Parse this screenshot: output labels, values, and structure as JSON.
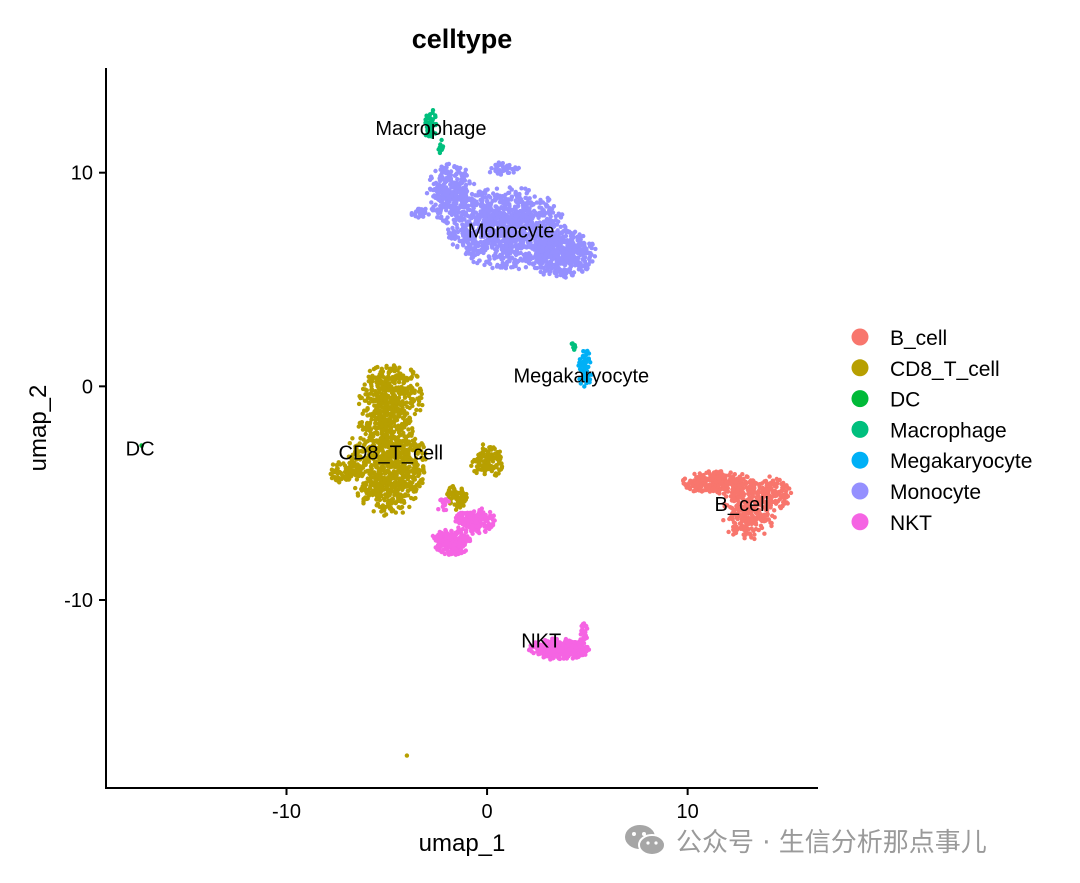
{
  "chart_data": {
    "type": "scatter",
    "title": "celltype",
    "xlabel": "umap_1",
    "ylabel": "umap_2",
    "xlim": [
      -19,
      16.5
    ],
    "ylim": [
      -18.8,
      14.9
    ],
    "xticks": [
      -10,
      0,
      10
    ],
    "yticks": [
      10,
      0,
      -10
    ],
    "xtick_labels": [
      "-10",
      "0",
      "10"
    ],
    "ytick_labels": [
      "10",
      "0",
      "-10"
    ],
    "grid": false,
    "legend_position": "right",
    "series": [
      {
        "name": "B_cell",
        "color": "#F8766D",
        "clusters": [
          {
            "cx": 11.5,
            "cy": -4.5,
            "rx": 1.8,
            "ry": 0.55,
            "n": 260
          },
          {
            "cx": 13.0,
            "cy": -5.8,
            "rx": 1.4,
            "ry": 1.4,
            "n": 320
          },
          {
            "cx": 14.2,
            "cy": -5.0,
            "rx": 1.0,
            "ry": 0.8,
            "n": 120
          }
        ]
      },
      {
        "name": "CD8_T_cell",
        "color": "#B79F00",
        "clusters": [
          {
            "cx": -4.8,
            "cy": -0.5,
            "rx": 1.6,
            "ry": 1.6,
            "n": 380
          },
          {
            "cx": -5.0,
            "cy": -3.5,
            "rx": 1.9,
            "ry": 2.6,
            "n": 900
          },
          {
            "cx": -7.2,
            "cy": -4.0,
            "rx": 0.8,
            "ry": 0.5,
            "n": 60
          },
          {
            "cx": 0.0,
            "cy": -3.5,
            "rx": 0.8,
            "ry": 0.8,
            "n": 120
          },
          {
            "cx": -1.5,
            "cy": -5.2,
            "rx": 0.5,
            "ry": 0.6,
            "n": 60
          },
          {
            "cx": -4.0,
            "cy": -17.3,
            "rx": 0.04,
            "ry": 0.04,
            "n": 1
          }
        ]
      },
      {
        "name": "DC",
        "color": "#00BA38",
        "clusters": [
          {
            "cx": -17.2,
            "cy": -2.8,
            "rx": 0.08,
            "ry": 0.08,
            "n": 2
          }
        ]
      },
      {
        "name": "Macrophage",
        "color": "#00BF7D",
        "clusters": [
          {
            "cx": -2.8,
            "cy": 12.2,
            "rx": 0.3,
            "ry": 0.8,
            "n": 40
          },
          {
            "cx": -2.3,
            "cy": 11.2,
            "rx": 0.15,
            "ry": 0.5,
            "n": 10
          },
          {
            "cx": 4.3,
            "cy": 1.8,
            "rx": 0.15,
            "ry": 0.3,
            "n": 8
          }
        ]
      },
      {
        "name": "Megakaryocyte",
        "color": "#00B0F6",
        "clusters": [
          {
            "cx": 4.9,
            "cy": 0.8,
            "rx": 0.35,
            "ry": 0.9,
            "n": 60
          }
        ]
      },
      {
        "name": "Monocyte",
        "color": "#9590FF",
        "clusters": [
          {
            "cx": -1.8,
            "cy": 9.0,
            "rx": 1.2,
            "ry": 1.4,
            "n": 300
          },
          {
            "cx": 1.0,
            "cy": 7.4,
            "rx": 2.9,
            "ry": 1.9,
            "n": 1100
          },
          {
            "cx": 3.7,
            "cy": 6.2,
            "rx": 1.7,
            "ry": 1.1,
            "n": 500
          },
          {
            "cx": -3.4,
            "cy": 8.1,
            "rx": 0.6,
            "ry": 0.25,
            "n": 25
          },
          {
            "cx": 0.8,
            "cy": 10.2,
            "rx": 0.8,
            "ry": 0.3,
            "n": 40
          }
        ]
      },
      {
        "name": "NKT",
        "color": "#F564E3",
        "clusters": [
          {
            "cx": -1.8,
            "cy": -7.3,
            "rx": 1.0,
            "ry": 0.6,
            "n": 200
          },
          {
            "cx": -0.6,
            "cy": -6.3,
            "rx": 1.0,
            "ry": 0.6,
            "n": 180
          },
          {
            "cx": -2.2,
            "cy": -5.5,
            "rx": 0.3,
            "ry": 0.4,
            "n": 20
          },
          {
            "cx": 3.6,
            "cy": -12.3,
            "rx": 1.5,
            "ry": 0.5,
            "n": 360
          },
          {
            "cx": 4.8,
            "cy": -11.5,
            "rx": 0.2,
            "ry": 0.5,
            "n": 25
          }
        ]
      }
    ],
    "annotations": [
      {
        "text": "Macrophage",
        "x": -2.8,
        "y": 12.1
      },
      {
        "text": "Monocyte",
        "x": 1.2,
        "y": 7.3
      },
      {
        "text": "Megakaryocyte",
        "x": 4.7,
        "y": 0.5
      },
      {
        "text": "DC",
        "x": -17.3,
        "y": -2.9
      },
      {
        "text": "CD8_T_cell",
        "x": -4.8,
        "y": -3.1
      },
      {
        "text": "B_cell",
        "x": 12.7,
        "y": -5.5
      },
      {
        "text": "NKT",
        "x": 2.7,
        "y": -11.9
      }
    ]
  },
  "watermark": {
    "icon": "wechat-icon",
    "text": "公众号 · 生信分析那点事儿"
  }
}
